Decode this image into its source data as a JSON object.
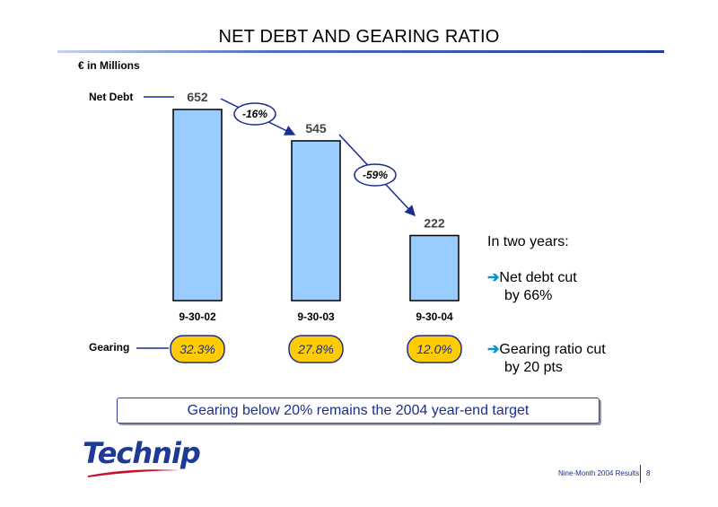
{
  "title": "NET DEBT AND GEARING RATIO",
  "units_label": "€ in Millions",
  "chart_data": {
    "type": "bar",
    "categories": [
      "9-30-02",
      "9-30-03",
      "9-30-04"
    ],
    "values": [
      652,
      545,
      222
    ],
    "series_label": "Net Debt",
    "ylim": [
      0,
      680
    ],
    "bar_color": "#99ccff",
    "changes": [
      "-16%",
      "-59%"
    ],
    "gearing_label": "Gearing",
    "gearing": [
      "32.3%",
      "27.8%",
      "12.0%"
    ],
    "gearing_color": "#ffcc00"
  },
  "sidebar": {
    "heading": "In two years:",
    "points": [
      {
        "arrow": "➔",
        "line1": "Net debt cut",
        "line2": "by 66%"
      },
      {
        "arrow": "➔",
        "line1": "Gearing ratio cut",
        "line2": "by 20 pts"
      }
    ]
  },
  "target": "Gearing below 20% remains the 2004 year-end target",
  "logo_text": "Technip",
  "footer": {
    "label": "Nine-Month 2004 Results",
    "page": "8"
  },
  "colors": {
    "navy": "#1b2e8f",
    "accent_arrow": "#0a8fd6"
  }
}
